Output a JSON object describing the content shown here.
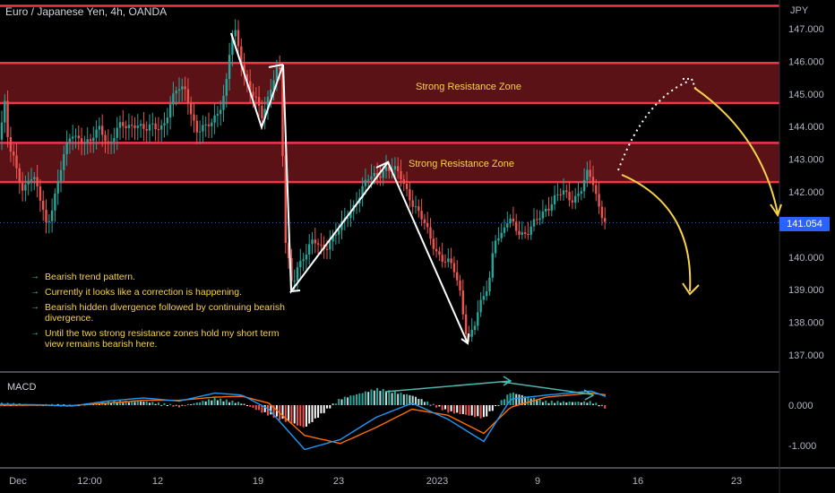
{
  "header": {
    "title": "Euro / Japanese Yen, 4h, OANDA",
    "currency": "JPY"
  },
  "last_price": "141.054",
  "price_axis": {
    "ticks": [
      "147.000",
      "146.000",
      "145.000",
      "144.000",
      "143.000",
      "142.000",
      "140.000",
      "139.000",
      "138.000",
      "137.000"
    ]
  },
  "macd_panel": {
    "label": "MACD",
    "ticks": [
      "0.000",
      "-1.000"
    ]
  },
  "time_axis": {
    "ticks": [
      "Dec",
      "12:00",
      "12",
      "19",
      "23",
      "2023",
      "9",
      "16",
      "23"
    ]
  },
  "zones": [
    {
      "label": "Strong Resistance Zone",
      "low": 144.72,
      "high": 145.95
    },
    {
      "label": "Strong Resistance Zone",
      "low": 142.3,
      "high": 143.5
    }
  ],
  "top_line": 147.7,
  "notes": [
    "Bearish trend pattern.",
    "Currently it looks like a correction is happening.",
    "Bearish hidden divergence followed by continuing bearish divergence.",
    "Until the two strong resistance zones hold my short term view remains bearish here."
  ],
  "colors": {
    "up": "#26a69a",
    "down": "#ef5350",
    "zone": "#5a1217",
    "zone_line": "#f23645",
    "macd": "#2196f3",
    "signal": "#ff6d00",
    "annotation": "#f7d24a",
    "price_tag": "#2962ff"
  },
  "chart_data": {
    "type": "candlestick",
    "title": "Euro / Japanese Yen, 4h, OANDA",
    "price_range": [
      136.6,
      147.8
    ],
    "close_path": [
      [
        0,
        143.6
      ],
      [
        5,
        144.8
      ],
      [
        10,
        143.2
      ],
      [
        18,
        142.8
      ],
      [
        25,
        142.1
      ],
      [
        32,
        142.5
      ],
      [
        40,
        142.2
      ],
      [
        52,
        141.0
      ],
      [
        60,
        141.8
      ],
      [
        70,
        142.9
      ],
      [
        80,
        143.8
      ],
      [
        90,
        143.7
      ],
      [
        100,
        143.4
      ],
      [
        112,
        144.0
      ],
      [
        122,
        143.5
      ],
      [
        132,
        143.9
      ],
      [
        142,
        144.0
      ],
      [
        152,
        144.2
      ],
      [
        162,
        143.8
      ],
      [
        172,
        144.0
      ],
      [
        182,
        144.1
      ],
      [
        190,
        144.6
      ],
      [
        198,
        145.1
      ],
      [
        208,
        145.2
      ],
      [
        214,
        144.4
      ],
      [
        220,
        143.8
      ],
      [
        230,
        143.9
      ],
      [
        238,
        144.3
      ],
      [
        245,
        144.6
      ],
      [
        252,
        145.1
      ],
      [
        258,
        146.6
      ],
      [
        262,
        146.9
      ],
      [
        270,
        146.0
      ],
      [
        278,
        145.2
      ],
      [
        285,
        144.8
      ],
      [
        292,
        144.2
      ],
      [
        300,
        145.0
      ],
      [
        308,
        145.9
      ],
      [
        313,
        145.6
      ],
      [
        318,
        140.5
      ],
      [
        326,
        139.1
      ],
      [
        332,
        139.8
      ],
      [
        340,
        140.1
      ],
      [
        350,
        140.4
      ],
      [
        360,
        140.3
      ],
      [
        370,
        140.6
      ],
      [
        380,
        140.8
      ],
      [
        390,
        141.4
      ],
      [
        400,
        141.9
      ],
      [
        410,
        142.3
      ],
      [
        420,
        142.5
      ],
      [
        430,
        142.8
      ],
      [
        440,
        142.6
      ],
      [
        448,
        142.4
      ],
      [
        456,
        142.0
      ],
      [
        466,
        141.4
      ],
      [
        476,
        140.8
      ],
      [
        486,
        140.3
      ],
      [
        496,
        139.9
      ],
      [
        506,
        139.6
      ],
      [
        514,
        138.9
      ],
      [
        522,
        137.5
      ],
      [
        530,
        137.9
      ],
      [
        538,
        138.6
      ],
      [
        546,
        139.3
      ],
      [
        552,
        140.7
      ],
      [
        560,
        140.6
      ],
      [
        568,
        141.1
      ],
      [
        578,
        140.9
      ],
      [
        588,
        140.7
      ],
      [
        598,
        141.0
      ],
      [
        608,
        141.5
      ],
      [
        618,
        141.8
      ],
      [
        628,
        141.9
      ],
      [
        638,
        141.8
      ],
      [
        648,
        142.1
      ],
      [
        656,
        142.5
      ],
      [
        662,
        142.2
      ],
      [
        668,
        141.6
      ],
      [
        674,
        141.3
      ],
      [
        678,
        141.05
      ]
    ],
    "macd": [
      [
        0,
        0.02
      ],
      [
        40,
        0.01
      ],
      [
        80,
        -0.02
      ],
      [
        120,
        0.1
      ],
      [
        160,
        0.18
      ],
      [
        200,
        0.1
      ],
      [
        240,
        0.3
      ],
      [
        270,
        0.25
      ],
      [
        300,
        -0.1
      ],
      [
        340,
        -1.1
      ],
      [
        380,
        -0.85
      ],
      [
        420,
        -0.3
      ],
      [
        460,
        0.05
      ],
      [
        500,
        -0.35
      ],
      [
        540,
        -0.9
      ],
      [
        570,
        0.15
      ],
      [
        610,
        0.25
      ],
      [
        660,
        0.35
      ],
      [
        678,
        0.2
      ]
    ],
    "signal": [
      [
        0,
        0.0
      ],
      [
        40,
        0.0
      ],
      [
        80,
        -0.01
      ],
      [
        120,
        0.05
      ],
      [
        160,
        0.12
      ],
      [
        200,
        0.12
      ],
      [
        240,
        0.2
      ],
      [
        270,
        0.22
      ],
      [
        300,
        0.05
      ],
      [
        340,
        -0.75
      ],
      [
        380,
        -0.95
      ],
      [
        420,
        -0.55
      ],
      [
        460,
        -0.1
      ],
      [
        500,
        -0.25
      ],
      [
        540,
        -0.7
      ],
      [
        570,
        -0.05
      ],
      [
        610,
        0.2
      ],
      [
        660,
        0.3
      ],
      [
        678,
        0.25
      ]
    ],
    "ylabel": "JPY"
  }
}
